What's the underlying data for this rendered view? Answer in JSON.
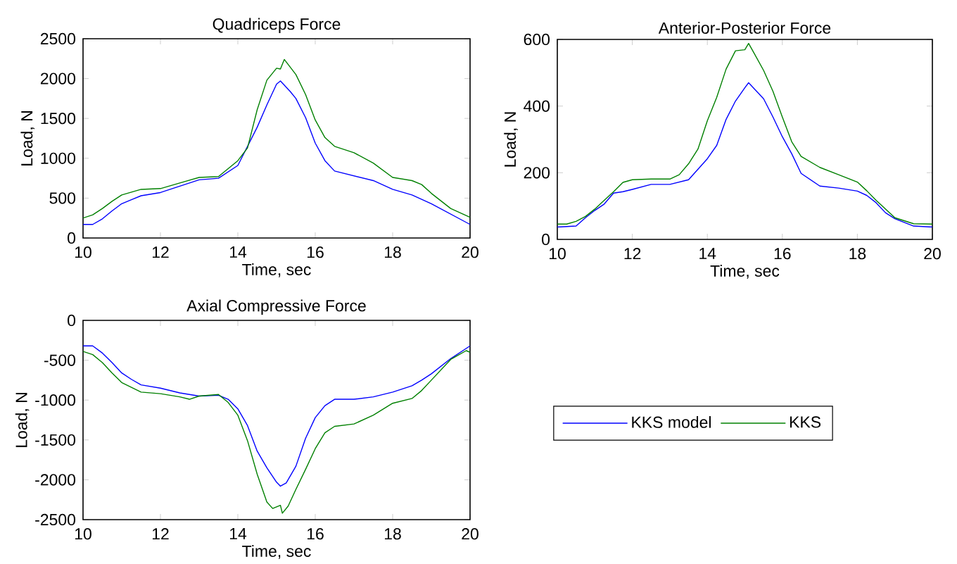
{
  "chart_data": [
    {
      "type": "line",
      "title": "Quadriceps Force",
      "xlabel": "Time, sec",
      "ylabel": "Load, N",
      "xlim": [
        10,
        20
      ],
      "ylim": [
        0,
        2500
      ],
      "xticks": [
        10,
        12,
        14,
        16,
        18,
        20
      ],
      "yticks": [
        0,
        500,
        1000,
        1500,
        2000,
        2500
      ],
      "series": [
        {
          "color": "#0000ff",
          "x": [
            10,
            10.25,
            10.5,
            10.75,
            11,
            11.25,
            11.5,
            12,
            12.5,
            13,
            13.5,
            14,
            14.5,
            14.75,
            15,
            15.1,
            15.35,
            15.5,
            15.75,
            16,
            16.25,
            16.5,
            17,
            17.5,
            18,
            18.5,
            19,
            19.5,
            20
          ],
          "values": [
            170,
            170,
            240,
            340,
            430,
            480,
            530,
            570,
            650,
            730,
            750,
            910,
            1390,
            1670,
            1930,
            1970,
            1840,
            1750,
            1510,
            1190,
            970,
            840,
            780,
            720,
            610,
            540,
            430,
            300,
            170
          ]
        },
        {
          "color": "#008000",
          "x": [
            10,
            10.25,
            10.5,
            10.75,
            11,
            11.5,
            12,
            12.5,
            13,
            13.5,
            14,
            14.25,
            14.5,
            14.75,
            15,
            15.1,
            15.2,
            15.5,
            15.75,
            16,
            16.25,
            16.5,
            17,
            17.5,
            18,
            18.5,
            18.75,
            19,
            19.5,
            20
          ],
          "values": [
            250,
            290,
            370,
            460,
            540,
            610,
            620,
            690,
            760,
            770,
            970,
            1130,
            1610,
            1980,
            2130,
            2120,
            2240,
            2050,
            1800,
            1480,
            1260,
            1150,
            1070,
            940,
            760,
            720,
            670,
            560,
            370,
            260
          ]
        }
      ]
    },
    {
      "type": "line",
      "title": "Anterior-Posterior Force",
      "xlabel": "Time, sec",
      "ylabel": "Load, N",
      "xlim": [
        10,
        20
      ],
      "ylim": [
        0,
        600
      ],
      "xticks": [
        10,
        12,
        14,
        16,
        18,
        20
      ],
      "yticks": [
        0,
        200,
        400,
        600
      ],
      "series": [
        {
          "color": "#0000ff",
          "x": [
            10,
            10.5,
            10.75,
            11,
            11.25,
            11.5,
            11.75,
            12,
            12.5,
            13,
            13.5,
            14,
            14.25,
            14.5,
            14.75,
            15,
            15.1,
            15.5,
            15.75,
            16,
            16.25,
            16.5,
            17,
            17.5,
            18,
            18.25,
            18.5,
            18.75,
            19,
            19.5,
            20
          ],
          "values": [
            37,
            40,
            65,
            87,
            106,
            139,
            143,
            150,
            165,
            165,
            179,
            242,
            282,
            360,
            415,
            455,
            470,
            422,
            367,
            308,
            257,
            198,
            160,
            154,
            145,
            132,
            110,
            80,
            62,
            40,
            37
          ]
        },
        {
          "color": "#008000",
          "x": [
            10,
            10.25,
            10.5,
            10.75,
            11,
            11.25,
            11.5,
            11.75,
            12,
            12.5,
            13,
            13.25,
            13.5,
            13.75,
            14,
            14.25,
            14.5,
            14.75,
            15,
            15.1,
            15.25,
            15.5,
            15.75,
            16,
            16.25,
            16.5,
            17,
            17.5,
            18,
            18.25,
            18.5,
            19,
            19.5,
            20
          ],
          "values": [
            46,
            46,
            54,
            69,
            91,
            117,
            143,
            171,
            179,
            181,
            181,
            194,
            227,
            271,
            356,
            426,
            511,
            566,
            569,
            588,
            558,
            507,
            444,
            367,
            293,
            249,
            216,
            194,
            172,
            146,
            117,
            65,
            47,
            46
          ]
        }
      ]
    },
    {
      "type": "line",
      "title": "Axial Compressive Force",
      "xlabel": "Time, sec",
      "ylabel": "Load, N",
      "xlim": [
        10,
        20
      ],
      "ylim": [
        -2500,
        0
      ],
      "xticks": [
        10,
        12,
        14,
        16,
        18,
        20
      ],
      "yticks": [
        -2500,
        -2000,
        -1500,
        -1000,
        -500,
        0
      ],
      "legend": "right",
      "series": [
        {
          "name": "KKS model",
          "color": "#0000ff",
          "x": [
            10,
            10.25,
            10.5,
            10.75,
            11,
            11.25,
            11.5,
            12,
            12.5,
            13,
            13.5,
            13.75,
            14,
            14.25,
            14.5,
            14.75,
            15,
            15.1,
            15.25,
            15.5,
            15.75,
            16,
            16.25,
            16.5,
            17,
            17.5,
            18,
            18.5,
            18.75,
            19,
            19.5,
            20
          ],
          "values": [
            -320,
            -320,
            -410,
            -530,
            -660,
            -740,
            -810,
            -850,
            -910,
            -950,
            -940,
            -990,
            -1110,
            -1320,
            -1640,
            -1850,
            -2030,
            -2080,
            -2040,
            -1830,
            -1480,
            -1220,
            -1070,
            -990,
            -990,
            -960,
            -900,
            -820,
            -750,
            -670,
            -480,
            -320
          ]
        },
        {
          "name": "KKS",
          "color": "#008000",
          "x": [
            10,
            10.25,
            10.5,
            10.75,
            11,
            11.5,
            12,
            12.5,
            12.75,
            13,
            13.5,
            13.75,
            14,
            14.25,
            14.5,
            14.75,
            14.9,
            15.1,
            15.15,
            15.3,
            15.5,
            15.75,
            16,
            16.25,
            16.5,
            17,
            17.5,
            18,
            18.5,
            18.75,
            19,
            19.5,
            19.9,
            20
          ],
          "values": [
            -390,
            -430,
            -530,
            -660,
            -780,
            -900,
            -920,
            -960,
            -990,
            -950,
            -930,
            -1030,
            -1190,
            -1510,
            -1930,
            -2280,
            -2360,
            -2320,
            -2420,
            -2330,
            -2120,
            -1870,
            -1610,
            -1410,
            -1330,
            -1300,
            -1190,
            -1040,
            -980,
            -880,
            -750,
            -490,
            -380,
            -400
          ]
        }
      ]
    }
  ]
}
